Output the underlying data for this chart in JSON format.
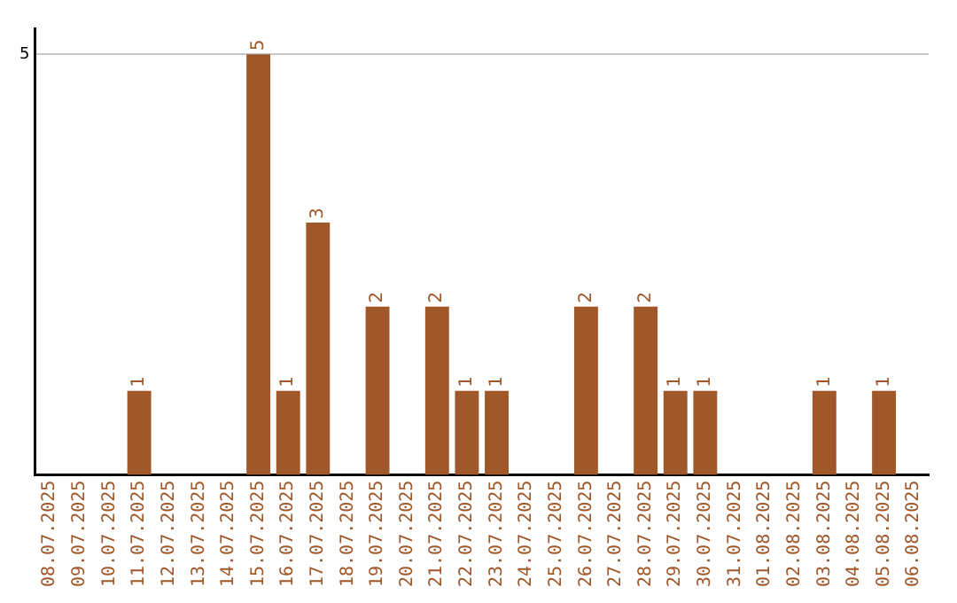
{
  "chart_data": {
    "type": "bar",
    "categories": [
      "08.07.2025",
      "09.07.2025",
      "10.07.2025",
      "11.07.2025",
      "12.07.2025",
      "13.07.2025",
      "14.07.2025",
      "15.07.2025",
      "16.07.2025",
      "17.07.2025",
      "18.07.2025",
      "19.07.2025",
      "20.07.2025",
      "21.07.2025",
      "22.07.2025",
      "23.07.2025",
      "24.07.2025",
      "25.07.2025",
      "26.07.2025",
      "27.07.2025",
      "28.07.2025",
      "29.07.2025",
      "30.07.2025",
      "31.07.2025",
      "01.08.2025",
      "02.08.2025",
      "03.08.2025",
      "04.08.2025",
      "05.08.2025",
      "06.08.2025"
    ],
    "values": [
      0,
      0,
      0,
      1,
      0,
      0,
      0,
      5,
      1,
      3,
      0,
      2,
      0,
      2,
      1,
      1,
      0,
      0,
      2,
      0,
      2,
      1,
      1,
      0,
      0,
      0,
      1,
      0,
      1,
      0
    ],
    "value_labels": [
      null,
      null,
      null,
      "1",
      null,
      null,
      null,
      "5",
      "1",
      "3",
      null,
      "2",
      null,
      "2",
      "1",
      "1",
      null,
      null,
      "2",
      null,
      "2",
      "1",
      "1",
      null,
      null,
      null,
      "1",
      null,
      "1",
      null
    ],
    "color": "#a0572a",
    "ylim": [
      0,
      5.3
    ],
    "yticks": [
      5
    ],
    "grid": "y",
    "legend": false
  }
}
